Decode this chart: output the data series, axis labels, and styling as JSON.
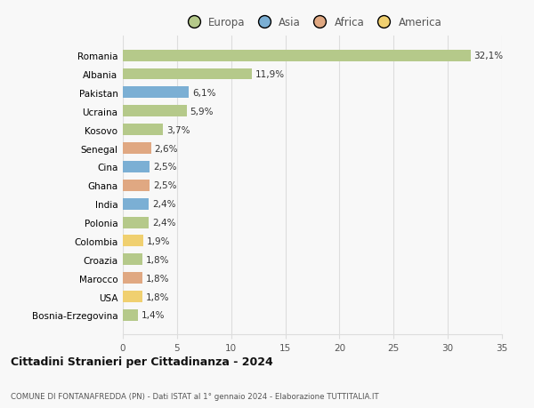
{
  "countries": [
    "Bosnia-Erzegovina",
    "USA",
    "Marocco",
    "Croazia",
    "Colombia",
    "Polonia",
    "India",
    "Ghana",
    "Cina",
    "Senegal",
    "Kosovo",
    "Ucraina",
    "Pakistan",
    "Albania",
    "Romania"
  ],
  "values": [
    1.4,
    1.8,
    1.8,
    1.8,
    1.9,
    2.4,
    2.4,
    2.5,
    2.5,
    2.6,
    3.7,
    5.9,
    6.1,
    11.9,
    32.1
  ],
  "continents": [
    "Europa",
    "America",
    "Africa",
    "Europa",
    "America",
    "Europa",
    "Asia",
    "Africa",
    "Asia",
    "Africa",
    "Europa",
    "Europa",
    "Asia",
    "Europa",
    "Europa"
  ],
  "colors": {
    "Europa": "#b5c98a",
    "Asia": "#7bafd4",
    "Africa": "#e0a882",
    "America": "#f0d070"
  },
  "xlim": [
    0,
    35
  ],
  "xticks": [
    0,
    5,
    10,
    15,
    20,
    25,
    30,
    35
  ],
  "title": "Cittadini Stranieri per Cittadinanza - 2024",
  "subtitle": "COMUNE DI FONTANAFREDDA (PN) - Dati ISTAT al 1° gennaio 2024 - Elaborazione TUTTITALIA.IT",
  "background_color": "#f8f8f8",
  "grid_color": "#dddddd",
  "legend_order": [
    "Europa",
    "Asia",
    "Africa",
    "America"
  ]
}
